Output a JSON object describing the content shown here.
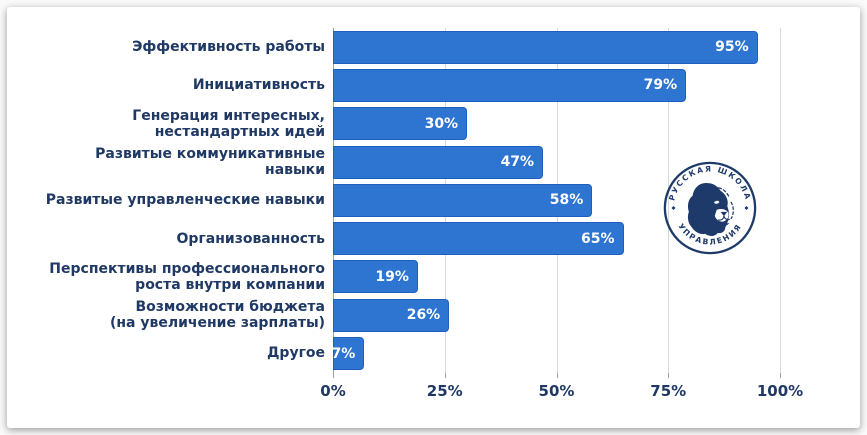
{
  "chart_data": {
    "type": "bar",
    "orientation": "horizontal",
    "title": "",
    "xlabel": "",
    "ylabel": "",
    "categories": [
      "Эффективность работы",
      "Инициативность",
      "Генерация интересных,\nнестандартных идей",
      "Развитые коммуникативные\nнавыки",
      "Развитые управленческие навыки",
      "Организованность",
      "Перспективы профессионального\nроста внутри компании",
      "Возможности бюджета\n(на увеличение зарплаты)",
      "Другое"
    ],
    "values": [
      95,
      79,
      30,
      47,
      58,
      65,
      19,
      26,
      7
    ],
    "value_labels": [
      "95%",
      "79%",
      "30%",
      "47%",
      "58%",
      "65%",
      "19%",
      "26%",
      "7%"
    ],
    "x_ticks": [
      "0%",
      "25%",
      "50%",
      "75%",
      "100%"
    ],
    "x_tick_values": [
      0,
      25,
      50,
      75,
      100
    ],
    "xlim": [
      0,
      100
    ],
    "grid": "vertical",
    "legend": "none",
    "colors": {
      "bar_fill": "#2e75d2",
      "bar_border": "#1e5ebe",
      "value_text": "#ffffff",
      "category_text": "#1f3864",
      "tick_text": "#1f3864",
      "gridline": "#d9d9d9",
      "axis_line": "#9e9e9e"
    }
  },
  "logo": {
    "text_top": "РУССКАЯ ШКОЛА",
    "text_bottom": "УПРАВЛЕНИЯ",
    "color": "#1e3a6b"
  }
}
